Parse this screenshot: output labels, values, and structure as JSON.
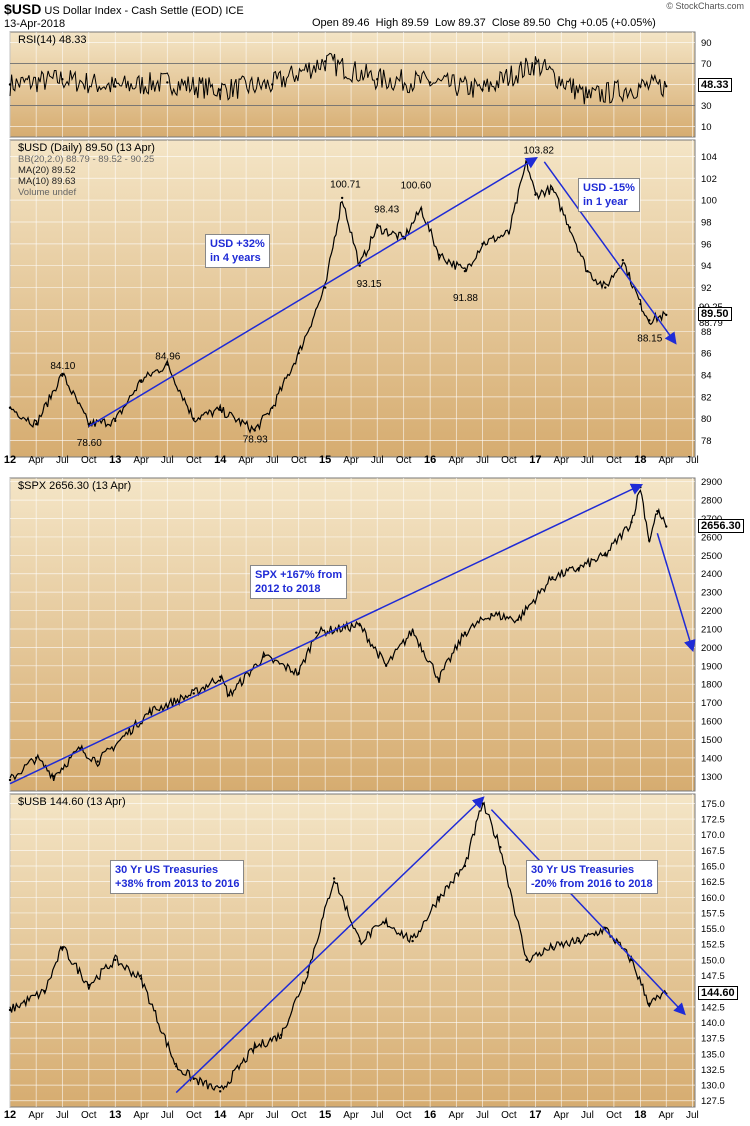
{
  "header": {
    "symbol": "$USD",
    "name": "US Dollar Index - Cash Settle (EOD)",
    "exchange": "ICE",
    "date": "13-Apr-2018",
    "open_label": "Open",
    "open": "89.46",
    "high_label": "High",
    "high": "89.59",
    "low_label": "Low",
    "low": "89.37",
    "close_label": "Close",
    "close": "89.50",
    "chg_label": "Chg",
    "chg": "+0.05 (+0.05%)",
    "watermark": "© StockCharts.com"
  },
  "colors": {
    "panel_bg_top": "#f4e5c6",
    "panel_bg_bottom": "#d6ac70",
    "price": "#000000",
    "up": "#000000",
    "down": "#c0392b",
    "arrow": "#1f2bd6",
    "grid": "#ffffff"
  },
  "chart_data": [
    {
      "type": "line",
      "panel": "rsi",
      "legend": "RSI(14) 48.33",
      "last": "48.33",
      "ylim": [
        0,
        100
      ],
      "yticks": [
        "90",
        "70",
        "50",
        "30",
        "10"
      ],
      "reference_lines": [
        70,
        30
      ],
      "x": [
        "2012-01",
        "2012-07",
        "2013-01",
        "2013-07",
        "2014-01",
        "2014-07",
        "2015-01",
        "2015-07",
        "2016-01",
        "2016-07",
        "2017-01",
        "2017-07",
        "2018-01",
        "2018-04"
      ],
      "values": [
        50,
        55,
        48,
        52,
        45,
        50,
        72,
        55,
        52,
        45,
        70,
        38,
        48,
        48.33
      ]
    },
    {
      "type": "line",
      "panel": "usd",
      "legend": [
        "$USD (Daily) 89.50 (13 Apr)",
        "BB(20,2.0) 88.79 - 89.52 - 90.25",
        "MA(20) 89.52",
        "MA(10) 89.63",
        "Volume undef"
      ],
      "last": "89.50",
      "right_labels": [
        "90.25",
        "88.79"
      ],
      "ylim": [
        76.5,
        105.5
      ],
      "yticks": [
        "104",
        "102",
        "100",
        "98",
        "96",
        "94",
        "92",
        "90",
        "88",
        "86",
        "84",
        "82",
        "80",
        "78"
      ],
      "x": [
        "2012-01",
        "2012-04",
        "2012-07",
        "2012-10",
        "2013-01",
        "2013-04",
        "2013-07",
        "2013-10",
        "2014-01",
        "2014-05",
        "2014-07",
        "2014-10",
        "2015-01",
        "2015-03",
        "2015-05",
        "2015-07",
        "2015-10",
        "2015-12",
        "2016-02",
        "2016-05",
        "2016-07",
        "2016-10",
        "2016-12",
        "2017-01",
        "2017-03",
        "2017-05",
        "2017-07",
        "2017-09",
        "2017-11",
        "2018-01",
        "2018-02",
        "2018-04"
      ],
      "values": [
        81,
        79.5,
        84.1,
        79.5,
        79.8,
        83.5,
        84.96,
        80,
        80.8,
        78.93,
        81,
        86,
        92,
        100.2,
        94,
        97.5,
        96.5,
        99.2,
        95,
        93.5,
        96,
        97,
        103.5,
        100.5,
        101,
        97.5,
        93.5,
        92,
        94.5,
        90.5,
        89,
        89.5
      ],
      "annotations": [
        {
          "x": "2012-07",
          "y": 84.1,
          "text": "84.10"
        },
        {
          "x": "2012-10",
          "y": 78.6,
          "text": "78.60"
        },
        {
          "x": "2013-07",
          "y": 84.96,
          "text": "84.96"
        },
        {
          "x": "2014-05",
          "y": 78.93,
          "text": "78.93"
        },
        {
          "x": "2015-03",
          "y": 100.71,
          "text": "100.71"
        },
        {
          "x": "2015-06",
          "y": 93.15,
          "text": "93.15"
        },
        {
          "x": "2015-08",
          "y": 98.43,
          "text": "98.43"
        },
        {
          "x": "2015-11",
          "y": 100.6,
          "text": "100.60"
        },
        {
          "x": "2016-05",
          "y": 91.88,
          "text": "91.88"
        },
        {
          "x": "2017-01",
          "y": 103.82,
          "text": "103.82"
        },
        {
          "x": "2018-02",
          "y": 88.15,
          "text": "88.15"
        }
      ],
      "callouts": [
        "USD +32%\nin 4 years",
        "USD -15%\nin 1 year"
      ]
    },
    {
      "type": "line",
      "panel": "spx",
      "legend": "$SPX 2656.30 (13 Apr)",
      "last": "2656.30",
      "ylim": [
        1220,
        2920
      ],
      "yticks": [
        "2900",
        "2800",
        "2700",
        "2600",
        "2500",
        "2400",
        "2300",
        "2200",
        "2100",
        "2000",
        "1900",
        "1800",
        "1700",
        "1600",
        "1500",
        "1400",
        "1300"
      ],
      "x": [
        "2012-01",
        "2012-04",
        "2012-06",
        "2012-09",
        "2012-11",
        "2013-05",
        "2013-10",
        "2014-01",
        "2014-02",
        "2014-06",
        "2014-10",
        "2014-12",
        "2015-05",
        "2015-08",
        "2015-11",
        "2016-02",
        "2016-05",
        "2016-08",
        "2016-11",
        "2017-03",
        "2017-06",
        "2017-09",
        "2017-12",
        "2018-01",
        "2018-02",
        "2018-03",
        "2018-04"
      ],
      "values": [
        1280,
        1400,
        1300,
        1450,
        1380,
        1650,
        1750,
        1840,
        1740,
        1950,
        1860,
        2080,
        2120,
        1900,
        2090,
        1830,
        2080,
        2180,
        2150,
        2380,
        2430,
        2500,
        2680,
        2870,
        2580,
        2740,
        2656.3
      ],
      "callouts": [
        "SPX +167% from\n2012 to 2018"
      ]
    },
    {
      "type": "line",
      "panel": "usb",
      "legend": "$USB 144.60 (13 Apr)",
      "last": "144.60",
      "ylim": [
        126.5,
        176.5
      ],
      "yticks": [
        "175.0",
        "172.5",
        "170.0",
        "167.5",
        "165.0",
        "162.5",
        "160.0",
        "157.5",
        "155.0",
        "152.5",
        "150.0",
        "147.5",
        "145.0",
        "142.5",
        "140.0",
        "137.5",
        "135.0",
        "132.5",
        "130.0",
        "127.5"
      ],
      "x": [
        "2012-01",
        "2012-05",
        "2012-07",
        "2012-10",
        "2013-01",
        "2013-04",
        "2013-08",
        "2013-10",
        "2014-01",
        "2014-05",
        "2014-08",
        "2014-11",
        "2015-02",
        "2015-05",
        "2015-08",
        "2015-11",
        "2016-02",
        "2016-05",
        "2016-07",
        "2016-09",
        "2016-12",
        "2017-03",
        "2017-06",
        "2017-09",
        "2017-12",
        "2018-02",
        "2018-04"
      ],
      "values": [
        142,
        145,
        152,
        146,
        150,
        147,
        133,
        131,
        129,
        136,
        138,
        148,
        163,
        153,
        156,
        153,
        160,
        165,
        175,
        168,
        150,
        152,
        153,
        155,
        150,
        143,
        144.6
      ],
      "callouts": [
        "30 Yr US Treasuries\n+38% from 2013 to 2016",
        "30 Yr US Treasuries\n-20% from 2016 to 2018"
      ]
    }
  ],
  "x_axis_labels": [
    "12",
    "Apr",
    "Jul",
    "Oct",
    "13",
    "Apr",
    "Jul",
    "Oct",
    "14",
    "Apr",
    "Jul",
    "Oct",
    "15",
    "Apr",
    "Jul",
    "Oct",
    "16",
    "Apr",
    "Jul",
    "Oct",
    "17",
    "Apr",
    "Jul",
    "Oct",
    "18",
    "Apr",
    "Jul"
  ]
}
